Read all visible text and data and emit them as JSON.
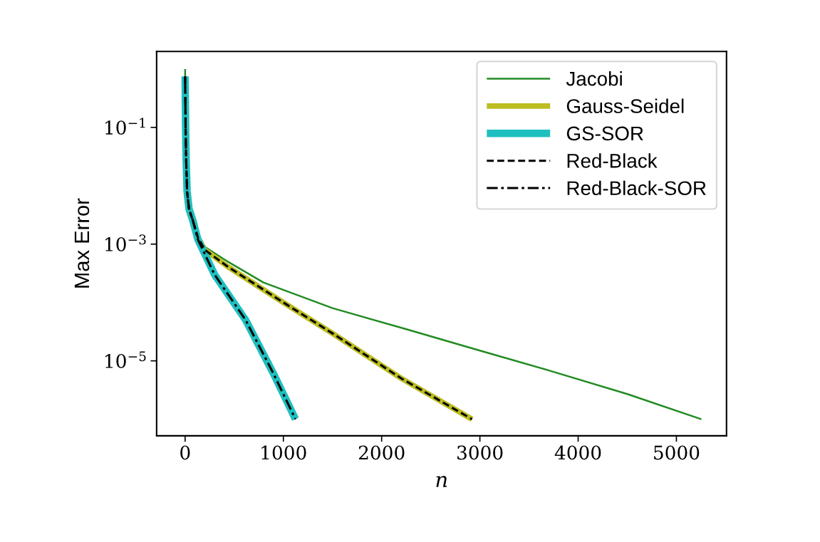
{
  "chart_data": {
    "type": "line",
    "xlabel": "n",
    "ylabel": "Max Error",
    "log": "y",
    "grid": false,
    "legend": "top right",
    "xlim": [
      -290,
      5510
    ],
    "xticks": [
      0,
      1000,
      2000,
      3000,
      4000,
      5000
    ],
    "ylim": [
      5.2e-07,
      2.0
    ],
    "yticks": [
      {
        "value": 0.1,
        "label": "10$^{−1}$"
      },
      {
        "value": 0.001,
        "label": "10$^{−3}$"
      },
      {
        "value": 1e-05,
        "label": "10$^{−5}$"
      }
    ],
    "series": [
      {
        "name": "Jacobi",
        "color": "#228b22",
        "line_style": "solid",
        "x": [
          0,
          5,
          10,
          20,
          40,
          80,
          130,
          200,
          435,
          797,
          1500,
          2246,
          3000,
          3696,
          4500,
          5254
        ],
        "values": [
          1.0,
          0.1,
          0.03,
          0.008,
          0.004,
          0.0025,
          0.0014,
          0.0009,
          0.0005,
          0.00022,
          8e-05,
          3.5e-05,
          1.5e-05,
          6.9e-06,
          2.7e-06,
          1e-06
        ]
      },
      {
        "name": "Gauss-Seidel",
        "color": "#bcbd22",
        "line_style": "solid",
        "x": [
          130,
          200,
          435,
          1000,
          1522,
          2200,
          2920
        ],
        "values": [
          0.0013,
          0.0008,
          0.00041,
          0.0001,
          2.8e-05,
          5e-06,
          1e-06
        ]
      },
      {
        "name": "GS-SOR",
        "color": "#1fbfbf",
        "line_style": "solid",
        "x": [
          0,
          5,
          10,
          20,
          40,
          80,
          130,
          300,
          616,
          900,
          1123
        ],
        "values": [
          0.75,
          0.1,
          0.03,
          0.008,
          0.004,
          0.0025,
          0.0012,
          0.0003,
          5e-05,
          6e-06,
          1e-06
        ]
      },
      {
        "name": "Red-Black",
        "color": "#000000",
        "line_style": "dashed",
        "x": [
          0,
          5,
          10,
          20,
          40,
          80,
          130,
          200,
          435,
          1000,
          1522,
          2200,
          2920
        ],
        "values": [
          0.75,
          0.1,
          0.03,
          0.008,
          0.004,
          0.0025,
          0.0013,
          0.0008,
          0.00041,
          0.0001,
          2.8e-05,
          5e-06,
          1e-06
        ]
      },
      {
        "name": "Red-Black-SOR",
        "color": "#000000",
        "line_style": "dashdot",
        "x": [
          0,
          5,
          10,
          20,
          40,
          80,
          130,
          300,
          616,
          900,
          1123
        ],
        "values": [
          0.75,
          0.1,
          0.03,
          0.008,
          0.004,
          0.0025,
          0.0012,
          0.0003,
          5e-05,
          6e-06,
          1e-06
        ]
      }
    ]
  }
}
